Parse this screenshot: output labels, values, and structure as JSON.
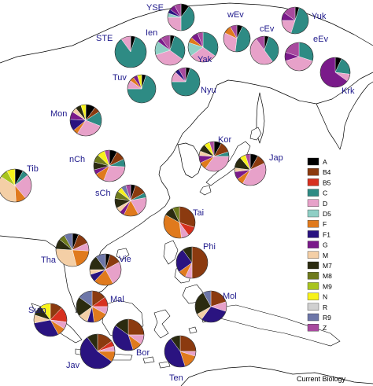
{
  "credit": "Current Biology",
  "colors": {
    "A": "#000000",
    "B4": "#8b3a0f",
    "B5": "#d7301f",
    "C": "#2e8b84",
    "D": "#e7a1c9",
    "D5": "#8fcfc5",
    "F": "#e07a1d",
    "F1": "#2a1380",
    "G": "#7a1a8a",
    "M": "#f4cfa6",
    "M7": "#2b2b10",
    "M8": "#6e7a1c",
    "M9": "#a8c41e",
    "N": "#f7f21a",
    "R": "#d0d0d0",
    "R9": "#6d76a8",
    "Z": "#a84a9e"
  },
  "legend": [
    "A",
    "B4",
    "B5",
    "C",
    "D",
    "D5",
    "F",
    "F1",
    "G",
    "M",
    "M7",
    "M8",
    "M9",
    "N",
    "R",
    "R9",
    "Z"
  ],
  "populations": [
    {
      "name": "YSE",
      "haplogroups": {
        "C": 40,
        "D": 25,
        "A": 10,
        "Z": 8,
        "G": 7,
        "D5": 5,
        "F1": 5
      }
    },
    {
      "name": "Ien",
      "haplogroups": {
        "D": 35,
        "C": 30,
        "D5": 15,
        "Z": 10,
        "A": 5,
        "G": 5
      }
    },
    {
      "name": "wEv",
      "haplogroups": {
        "C": 45,
        "D": 30,
        "F": 10,
        "Z": 8,
        "A": 7
      }
    },
    {
      "name": "Yuk",
      "haplogroups": {
        "C": 50,
        "D": 20,
        "Z": 15,
        "G": 10,
        "A": 5
      }
    },
    {
      "name": "STE",
      "haplogroups": {
        "C": 85,
        "D": 10,
        "A": 5
      }
    },
    {
      "name": "Yak",
      "haplogroups": {
        "C": 35,
        "D": 30,
        "D5": 15,
        "G": 8,
        "F": 6,
        "Z": 6
      }
    },
    {
      "name": "cEv",
      "haplogroups": {
        "D": 50,
        "C": 35,
        "Z": 10,
        "A": 5
      }
    },
    {
      "name": "eEv",
      "haplogroups": {
        "D": 40,
        "C": 30,
        "Z": 20,
        "G": 10
      }
    },
    {
      "name": "Tuv",
      "haplogroups": {
        "C": 70,
        "D": 10,
        "A": 5,
        "F": 5,
        "G": 5,
        "N": 5
      }
    },
    {
      "name": "Nyu",
      "haplogroups": {
        "C": 70,
        "D": 12,
        "Z": 8,
        "A": 5,
        "F1": 5
      }
    },
    {
      "name": "Krk",
      "haplogroups": {
        "G": 65,
        "C": 20,
        "D": 8,
        "A": 7
      }
    },
    {
      "name": "Mon",
      "haplogroups": {
        "D": 28,
        "C": 15,
        "F1": 12,
        "A": 10,
        "G": 8,
        "M7": 6,
        "B4": 6,
        "M": 5,
        "F": 5,
        "N": 5
      }
    },
    {
      "name": "nCh",
      "haplogroups": {
        "D": 30,
        "F": 10,
        "B4": 10,
        "A": 8,
        "M8": 8,
        "C": 8,
        "M7": 8,
        "N": 8,
        "Z": 5,
        "G": 5
      }
    },
    {
      "name": "Kor",
      "haplogroups": {
        "D": 35,
        "B4": 12,
        "A": 8,
        "F": 8,
        "G": 8,
        "M7": 8,
        "N": 6,
        "Z": 5,
        "C": 5,
        "M": 5
      }
    },
    {
      "name": "Tib",
      "haplogroups": {
        "M": 35,
        "D": 25,
        "F": 10,
        "A": 8,
        "M9": 8,
        "C": 6,
        "N": 8
      }
    },
    {
      "name": "Jap",
      "haplogroups": {
        "D": 40,
        "M7": 12,
        "B4": 10,
        "A": 8,
        "G": 8,
        "F": 7,
        "N": 6,
        "Z": 5,
        "M": 4
      }
    },
    {
      "name": "sCh",
      "haplogroups": {
        "D": 20,
        "F": 15,
        "B4": 12,
        "M7": 10,
        "M8": 8,
        "A": 5,
        "R9": 5,
        "N": 5,
        "C": 5,
        "M": 5,
        "Z": 5,
        "G": 5
      }
    },
    {
      "name": "Tai",
      "haplogroups": {
        "F": 35,
        "B4": 30,
        "B5": 10,
        "M7": 10,
        "D": 8,
        "M8": 7
      }
    },
    {
      "name": "Tha",
      "haplogroups": {
        "M": 30,
        "F": 20,
        "B4": 12,
        "M7": 10,
        "R9": 8,
        "D": 8,
        "M8": 6,
        "A": 6
      }
    },
    {
      "name": "Vie",
      "haplogroups": {
        "D": 25,
        "F": 20,
        "M7": 15,
        "B4": 12,
        "R9": 10,
        "F1": 8,
        "M": 5,
        "A": 5
      }
    },
    {
      "name": "Phi",
      "haplogroups": {
        "B4": 50,
        "F1": 25,
        "M7": 10,
        "F": 8,
        "D": 7
      }
    },
    {
      "name": "Mal",
      "haplogroups": {
        "M7": 20,
        "F": 15,
        "B4": 15,
        "R9": 15,
        "M": 10,
        "B5": 10,
        "D": 8,
        "F1": 7
      }
    },
    {
      "name": "Mol",
      "haplogroups": {
        "F1": 30,
        "M7": 25,
        "B4": 20,
        "D": 10,
        "R9": 8,
        "M": 7
      }
    },
    {
      "name": "Sum",
      "haplogroups": {
        "F1": 30,
        "B5": 15,
        "B4": 12,
        "M7": 10,
        "N": 10,
        "M": 8,
        "F": 8,
        "D": 7
      }
    },
    {
      "name": "Jav",
      "haplogroups": {
        "F1": 55,
        "B4": 15,
        "M7": 10,
        "F": 10,
        "D": 5,
        "B5": 5
      }
    },
    {
      "name": "Bor",
      "haplogroups": {
        "F1": 40,
        "B4": 25,
        "M7": 15,
        "F": 10,
        "D": 10
      }
    },
    {
      "name": "Ten",
      "haplogroups": {
        "F1": 45,
        "B4": 25,
        "F": 15,
        "M7": 10,
        "D": 5
      }
    }
  ]
}
